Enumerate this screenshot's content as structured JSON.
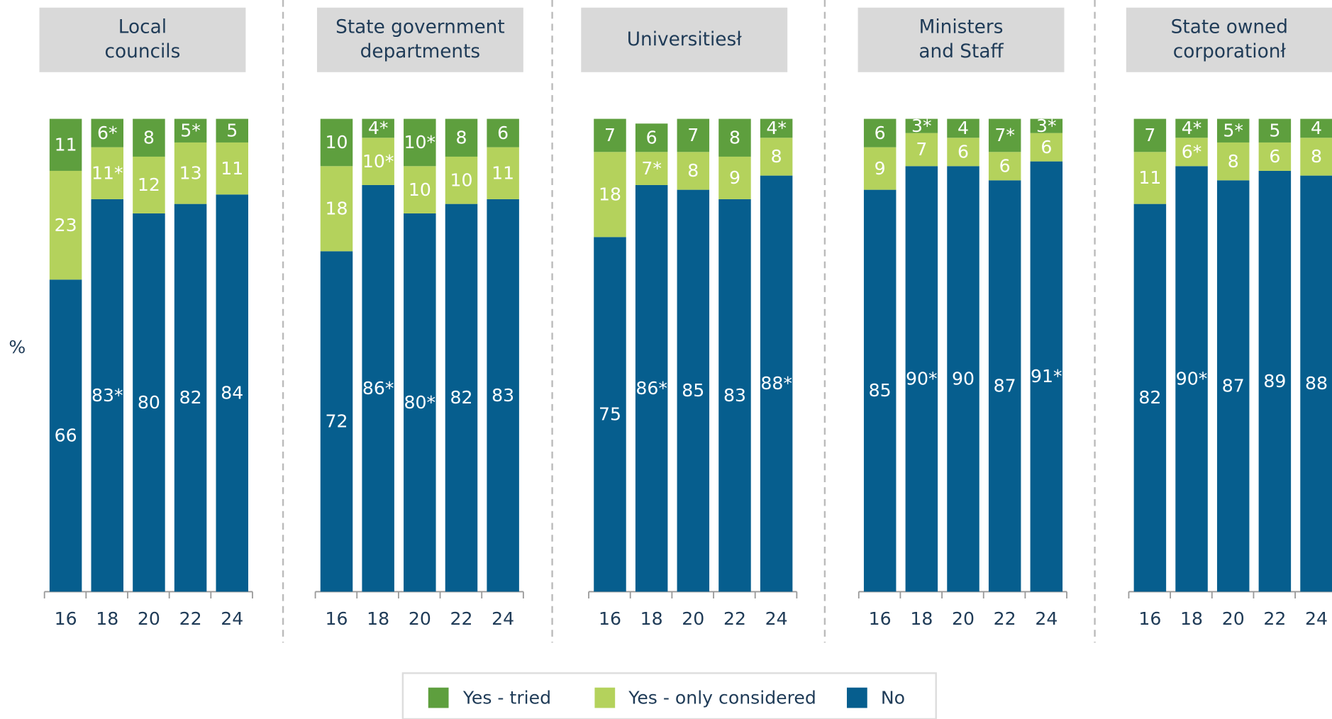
{
  "chart_data": [
    {
      "type": "stacked_bar",
      "title": [
        "Local",
        "councils"
      ],
      "ylabel": "%",
      "legend": "bottom",
      "categories": [
        "16",
        "18",
        "20",
        "22",
        "24"
      ],
      "series": [
        {
          "name": "Yes - tried",
          "color": "#5e9f3e",
          "values": [
            11,
            6,
            8,
            5,
            5
          ],
          "value_labels": [
            "11",
            "6*",
            "8",
            "5*",
            "5"
          ]
        },
        {
          "name": "Yes - only considered",
          "color": "#b4d25c",
          "values": [
            23,
            11,
            12,
            13,
            11
          ],
          "value_labels": [
            "23",
            "11*",
            "12",
            "13",
            "11"
          ]
        },
        {
          "name": "No",
          "color": "#065e8e",
          "values": [
            66,
            83,
            80,
            82,
            84
          ],
          "value_labels": [
            "66",
            "83*",
            "80",
            "82",
            "84"
          ]
        }
      ]
    },
    {
      "type": "stacked_bar",
      "title": [
        "State government",
        "departments"
      ],
      "categories": [
        "16",
        "18",
        "20",
        "22",
        "24"
      ],
      "series": [
        {
          "name": "Yes - tried",
          "color": "#5e9f3e",
          "values": [
            10,
            4,
            10,
            8,
            6
          ],
          "value_labels": [
            "10",
            "4*",
            "10*",
            "8",
            "6"
          ]
        },
        {
          "name": "Yes - only considered",
          "color": "#b4d25c",
          "values": [
            18,
            10,
            10,
            10,
            11
          ],
          "value_labels": [
            "18",
            "10*",
            "10",
            "10",
            "11"
          ]
        },
        {
          "name": "No",
          "color": "#065e8e",
          "values": [
            72,
            86,
            80,
            82,
            83
          ],
          "value_labels": [
            "72",
            "86*",
            "80*",
            "82",
            "83"
          ]
        }
      ]
    },
    {
      "type": "stacked_bar",
      "title": [
        "Universitiesł"
      ],
      "categories": [
        "16",
        "18",
        "20",
        "22",
        "24"
      ],
      "series": [
        {
          "name": "Yes - tried",
          "color": "#5e9f3e",
          "values": [
            7,
            6,
            7,
            8,
            4
          ],
          "value_labels": [
            "7",
            "6",
            "7",
            "8",
            "4*"
          ]
        },
        {
          "name": "Yes - only considered",
          "color": "#b4d25c",
          "values": [
            18,
            7,
            8,
            9,
            8
          ],
          "value_labels": [
            "18",
            "7*",
            "8",
            "9",
            "8"
          ]
        },
        {
          "name": "No",
          "color": "#065e8e",
          "values": [
            75,
            86,
            85,
            83,
            88
          ],
          "value_labels": [
            "75",
            "86*",
            "85",
            "83",
            "88*"
          ]
        }
      ]
    },
    {
      "type": "stacked_bar",
      "title": [
        "Ministers",
        "and Staff"
      ],
      "categories": [
        "16",
        "18",
        "20",
        "22",
        "24"
      ],
      "series": [
        {
          "name": "Yes - tried",
          "color": "#5e9f3e",
          "values": [
            6,
            3,
            4,
            7,
            3
          ],
          "value_labels": [
            "6",
            "3*",
            "4",
            "7*",
            "3*"
          ]
        },
        {
          "name": "Yes - only considered",
          "color": "#b4d25c",
          "values": [
            9,
            7,
            6,
            6,
            6
          ]
        },
        {
          "name": "No",
          "color": "#065e8e",
          "values": [
            85,
            90,
            90,
            87,
            91
          ],
          "value_labels": [
            "85",
            "90*",
            "90",
            "87",
            "91*"
          ]
        }
      ]
    },
    {
      "type": "stacked_bar",
      "title": [
        "State owned",
        "corporationł"
      ],
      "categories": [
        "16",
        "18",
        "20",
        "22",
        "24"
      ],
      "series": [
        {
          "name": "Yes - tried",
          "color": "#5e9f3e",
          "values": [
            7,
            4,
            5,
            5,
            4
          ],
          "value_labels": [
            "7",
            "4*",
            "5*",
            "5",
            "4"
          ]
        },
        {
          "name": "Yes - only considered",
          "color": "#b4d25c",
          "values": [
            11,
            6,
            8,
            6,
            8
          ],
          "value_labels": [
            "11",
            "6*",
            "8",
            "6",
            "8"
          ]
        },
        {
          "name": "No",
          "color": "#065e8e",
          "values": [
            82,
            90,
            87,
            89,
            88
          ],
          "value_labels": [
            "82",
            "90*",
            "87",
            "89",
            "88"
          ]
        }
      ]
    }
  ]
}
